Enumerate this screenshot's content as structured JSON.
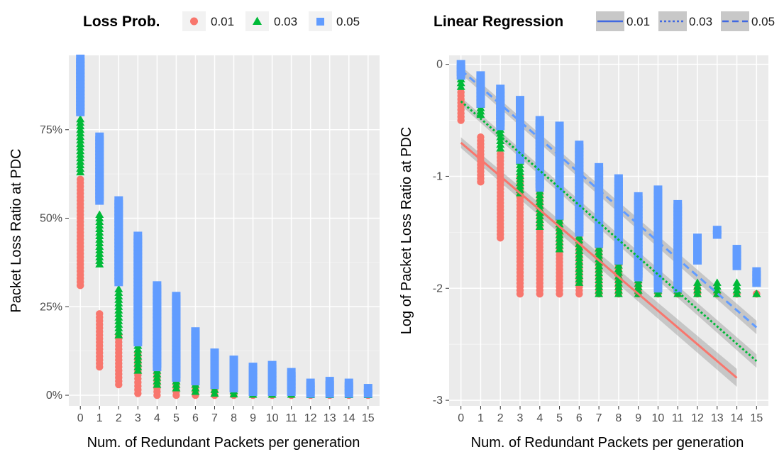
{
  "legends": {
    "loss_prob": {
      "title": "Loss Prob.",
      "entries": [
        {
          "label": "0.01",
          "color": "#F8766D",
          "shape": "circle"
        },
        {
          "label": "0.03",
          "color": "#00BA38",
          "shape": "triangle"
        },
        {
          "label": "0.05",
          "color": "#619CFF",
          "shape": "square"
        }
      ]
    },
    "linear_regression": {
      "title": "Linear Regression",
      "entries": [
        {
          "label": "0.01",
          "line_color": "#4169E1",
          "dash": "solid"
        },
        {
          "label": "0.03",
          "line_color": "#4169E1",
          "dash": "dotted"
        },
        {
          "label": "0.05",
          "line_color": "#4169E1",
          "dash": "dashed"
        }
      ]
    }
  },
  "chart_data": [
    {
      "type": "scatter",
      "xlabel": "Num. of Redundant Packets per generation",
      "ylabel": "Packet Loss Ratio at PDC",
      "x_ticks": [
        "0",
        "1",
        "2",
        "3",
        "4",
        "5",
        "6",
        "7",
        "8",
        "9",
        "10",
        "11",
        "12",
        "13",
        "14",
        "15"
      ],
      "y_ticks": [
        "0%",
        "25%",
        "50%",
        "75%"
      ],
      "y_tick_values": [
        0,
        0.25,
        0.5,
        0.75
      ],
      "xlim": [
        -0.6,
        15.6
      ],
      "ylim": [
        -0.03,
        0.96
      ],
      "grid": true,
      "panel_background": "#EBEBEB",
      "series": [
        {
          "name": "0.01",
          "color": "#F8766D",
          "shape": "circle",
          "ranges": [
            [
              0,
              0.31,
              0.61
            ],
            [
              1,
              0.08,
              0.23
            ],
            [
              2,
              0.03,
              0.17
            ],
            [
              3,
              0.005,
              0.12
            ],
            [
              4,
              0.0,
              0.08
            ],
            [
              5,
              0.0,
              0.06
            ],
            [
              6,
              0.0,
              0.04
            ],
            [
              7,
              0.0,
              0.03
            ],
            [
              8,
              0.0,
              0.02
            ],
            [
              9,
              0.0,
              0.015
            ],
            [
              10,
              0.0,
              0.01
            ],
            [
              11,
              0.0,
              0.01
            ],
            [
              12,
              0.0,
              0.008
            ],
            [
              13,
              0.0,
              0.006
            ],
            [
              14,
              0.0,
              0.005
            ],
            [
              15,
              0.0,
              0.005
            ]
          ]
        },
        {
          "name": "0.03",
          "color": "#00BA38",
          "shape": "triangle",
          "ranges": [
            [
              0,
              0.63,
              0.78
            ],
            [
              1,
              0.37,
              0.51
            ],
            [
              2,
              0.17,
              0.3
            ],
            [
              3,
              0.07,
              0.23
            ],
            [
              4,
              0.03,
              0.14
            ],
            [
              5,
              0.02,
              0.12
            ],
            [
              6,
              0.01,
              0.11
            ],
            [
              7,
              0.005,
              0.1
            ],
            [
              8,
              0.003,
              0.04
            ],
            [
              9,
              0.002,
              0.03
            ],
            [
              10,
              0.002,
              0.02
            ],
            [
              11,
              0.002,
              0.04
            ],
            [
              12,
              0.001,
              0.01
            ],
            [
              13,
              0.001,
              0.01
            ],
            [
              14,
              0.001,
              0.01
            ],
            [
              15,
              0.001,
              0.01
            ]
          ]
        },
        {
          "name": "0.05",
          "color": "#619CFF",
          "shape": "square",
          "ranges": [
            [
              0,
              0.8,
              0.95
            ],
            [
              1,
              0.55,
              0.73
            ],
            [
              2,
              0.32,
              0.55
            ],
            [
              3,
              0.15,
              0.45
            ],
            [
              4,
              0.08,
              0.31
            ],
            [
              5,
              0.05,
              0.28
            ],
            [
              6,
              0.04,
              0.18
            ],
            [
              7,
              0.03,
              0.12
            ],
            [
              8,
              0.02,
              0.1
            ],
            [
              9,
              0.01,
              0.08
            ],
            [
              10,
              0.01,
              0.085
            ],
            [
              11,
              0.01,
              0.065
            ],
            [
              12,
              0.005,
              0.035
            ],
            [
              13,
              0.005,
              0.04
            ],
            [
              14,
              0.005,
              0.035
            ],
            [
              15,
              0.005,
              0.02
            ]
          ]
        }
      ]
    },
    {
      "type": "scatter",
      "xlabel": "Num. of Redundant Packets per generation",
      "ylabel": "Log of Packet Loss Ratio at PDC",
      "x_ticks": [
        "0",
        "1",
        "2",
        "3",
        "4",
        "5",
        "6",
        "7",
        "8",
        "9",
        "10",
        "11",
        "12",
        "13",
        "14",
        "15"
      ],
      "y_ticks": [
        "0",
        "-1",
        "-2",
        "-3"
      ],
      "y_tick_values": [
        0,
        -1,
        -2,
        -3
      ],
      "xlim": [
        -0.6,
        15.6
      ],
      "ylim": [
        -3.05,
        0.08
      ],
      "grid": true,
      "panel_background": "#EBEBEB",
      "series": [
        {
          "name": "0.01",
          "color": "#F8766D",
          "shape": "circle",
          "ranges": [
            [
              0,
              -0.5,
              -0.25
            ],
            [
              1,
              -1.05,
              -0.65
            ],
            [
              2,
              -1.55,
              -0.8
            ],
            [
              3,
              -2.05,
              -1.0
            ],
            [
              4,
              -2.05,
              -1.15
            ],
            [
              5,
              -2.05,
              -1.2
            ],
            [
              6,
              -2.05,
              -1.35
            ],
            [
              7,
              -2.05,
              -1.6
            ],
            [
              8,
              -2.05,
              -1.6
            ],
            [
              9,
              -2.05,
              -1.85
            ],
            [
              10,
              -2.05,
              -1.95
            ],
            [
              11,
              -2.05,
              -2.0
            ],
            [
              12,
              -2.05,
              -2.0
            ],
            [
              13,
              -2.05,
              -2.05
            ],
            [
              14,
              -2.05,
              -2.05
            ],
            [
              15,
              -2.05,
              -2.05
            ]
          ],
          "regression": {
            "x": [
              0,
              14
            ],
            "y": [
              -0.7,
              -2.8
            ],
            "dash": "solid",
            "band": 0.08
          }
        },
        {
          "name": "0.03",
          "color": "#00BA38",
          "shape": "triangle",
          "ranges": [
            [
              0,
              -0.2,
              -0.1
            ],
            [
              1,
              -0.45,
              -0.3
            ],
            [
              2,
              -0.75,
              -0.55
            ],
            [
              3,
              -1.15,
              -0.65
            ],
            [
              4,
              -1.45,
              -0.85
            ],
            [
              5,
              -1.65,
              -0.95
            ],
            [
              6,
              -1.95,
              -1.0
            ],
            [
              7,
              -2.05,
              -1.05
            ],
            [
              8,
              -2.05,
              -1.35
            ],
            [
              9,
              -2.05,
              -1.4
            ],
            [
              10,
              -2.05,
              -1.45
            ],
            [
              11,
              -2.05,
              -1.45
            ],
            [
              12,
              -2.05,
              -1.95
            ],
            [
              13,
              -2.05,
              -1.95
            ],
            [
              14,
              -2.05,
              -1.95
            ],
            [
              15,
              -2.05,
              -2.05
            ]
          ],
          "regression": {
            "x": [
              0,
              15
            ],
            "y": [
              -0.33,
              -2.65
            ],
            "dash": "dotted",
            "band": 0.06
          }
        },
        {
          "name": "0.05",
          "color": "#619CFF",
          "shape": "square",
          "ranges": [
            [
              0,
              -0.1,
              0.0
            ],
            [
              1,
              -0.35,
              -0.1
            ],
            [
              2,
              -0.55,
              -0.22
            ],
            [
              3,
              -0.85,
              -0.32
            ],
            [
              4,
              -1.1,
              -0.5
            ],
            [
              5,
              -1.35,
              -0.55
            ],
            [
              6,
              -1.5,
              -0.72
            ],
            [
              7,
              -1.6,
              -0.92
            ],
            [
              8,
              -1.75,
              -1.02
            ],
            [
              9,
              -1.9,
              -1.18
            ],
            [
              10,
              -2.0,
              -1.12
            ],
            [
              11,
              -2.0,
              -1.25
            ],
            [
              12,
              -1.75,
              -1.55
            ],
            [
              13,
              -1.52,
              -1.48
            ],
            [
              14,
              -1.8,
              -1.65
            ],
            [
              15,
              -1.95,
              -1.85
            ]
          ],
          "regression": {
            "x": [
              0,
              15
            ],
            "y": [
              -0.05,
              -2.35
            ],
            "dash": "dashed",
            "band": 0.06
          }
        }
      ]
    }
  ]
}
